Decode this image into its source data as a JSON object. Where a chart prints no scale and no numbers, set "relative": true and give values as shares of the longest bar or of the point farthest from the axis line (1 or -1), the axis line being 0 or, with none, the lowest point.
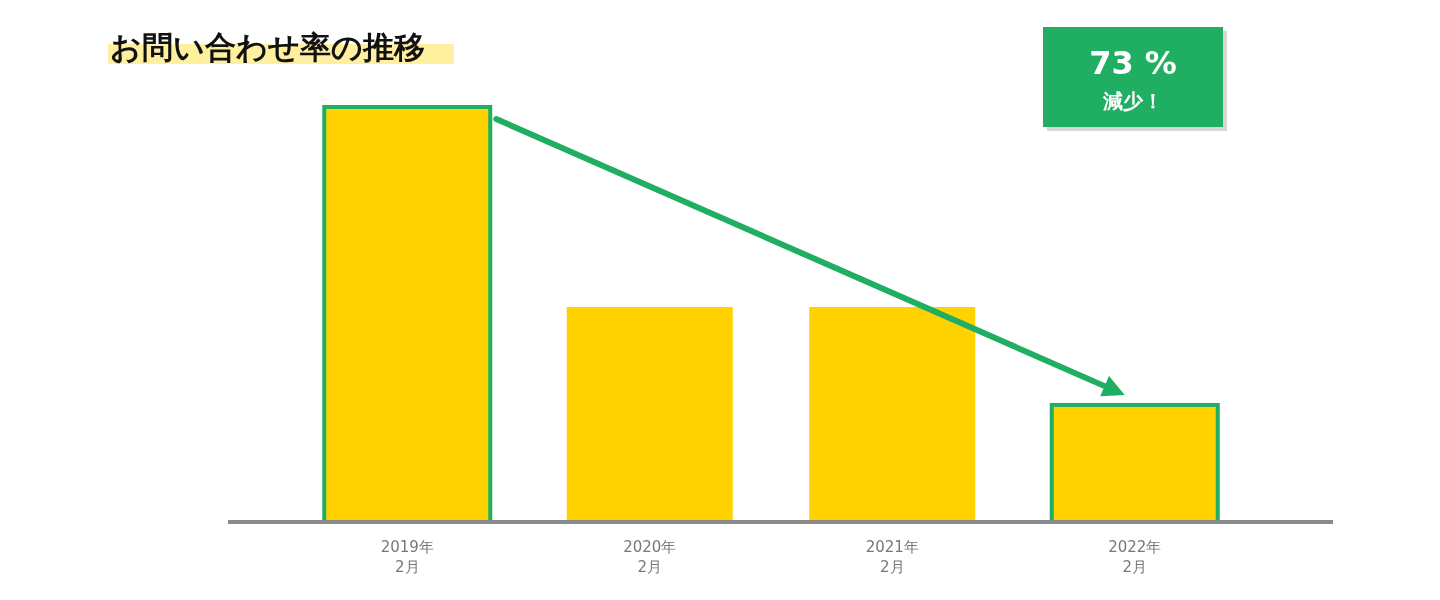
{
  "chart_data": {
    "type": "bar",
    "title": "お問い合わせ率の推移",
    "categories": [
      "2019年\n2月",
      "2020年\n2月",
      "2021年\n2月",
      "2022年\n2月"
    ],
    "values": [
      1,
      0.518,
      0.518,
      0.282
    ],
    "color": "#ffd200",
    "relative": true,
    "annotations": [
      "73 %\n減少！"
    ]
  }
}
